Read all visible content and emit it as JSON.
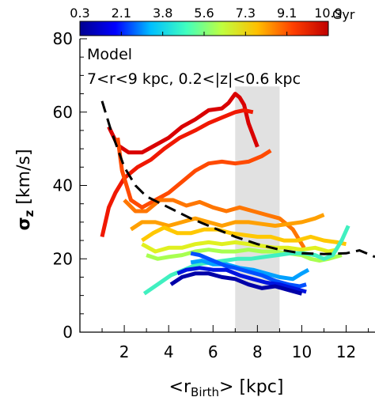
{
  "chart_data": {
    "type": "line",
    "annotations": [
      "Model",
      "7<r<9 kpc, 0.2<|z|<0.6 kpc"
    ],
    "xlabel": {
      "prefix": "<r",
      "sub": "Birth",
      "suffix": "> [kpc]"
    },
    "ylabel": {
      "main": "σ",
      "sub": "z",
      "suffix": " [km/s]"
    },
    "xlim": [
      0,
      13.3
    ],
    "ylim": [
      0,
      80
    ],
    "xticks": [
      2,
      4,
      6,
      8,
      10,
      12
    ],
    "yticks": [
      0,
      20,
      40,
      60,
      80
    ],
    "colorbar": {
      "ticks": [
        "0.3",
        "2.1",
        "3.8",
        "5.6",
        "7.3",
        "9.1",
        "10.9"
      ],
      "unit": "Gyr",
      "colors": [
        "#00008f",
        "#0000ff",
        "#00bfff",
        "#40ffbf",
        "#bfff40",
        "#ffbf00",
        "#ff4000",
        "#bf0000"
      ]
    },
    "shaded_region": {
      "x": [
        7,
        9
      ],
      "color": "#e1e1e1"
    },
    "reference_line": {
      "style": "dashed",
      "color": "#000000",
      "points": [
        [
          1.0,
          63
        ],
        [
          1.4,
          55
        ],
        [
          2.0,
          45
        ],
        [
          2.5,
          40
        ],
        [
          3.0,
          37
        ],
        [
          4.0,
          34
        ],
        [
          5.0,
          31
        ],
        [
          6.0,
          28.5
        ],
        [
          7.0,
          26
        ],
        [
          8.0,
          24
        ],
        [
          9.0,
          22.5
        ],
        [
          10.0,
          21.5
        ],
        [
          11.0,
          21.3
        ],
        [
          12.0,
          21.5
        ],
        [
          12.6,
          22.3
        ],
        [
          13.3,
          20.5
        ]
      ]
    },
    "series": [
      {
        "color": "#d90000",
        "points": [
          [
            1.3,
            56
          ],
          [
            1.7,
            51
          ],
          [
            2.2,
            49
          ],
          [
            2.8,
            49
          ],
          [
            3.4,
            51
          ],
          [
            4.0,
            53
          ],
          [
            4.6,
            56
          ],
          [
            5.2,
            58
          ],
          [
            5.8,
            60.5
          ],
          [
            6.4,
            61
          ],
          [
            6.7,
            62.5
          ],
          [
            7.0,
            65
          ],
          [
            7.2,
            64
          ],
          [
            7.4,
            62
          ],
          [
            7.6,
            57
          ],
          [
            8.0,
            50.5
          ]
        ]
      },
      {
        "color": "#f01800",
        "points": [
          [
            1.0,
            26
          ],
          [
            1.3,
            34
          ],
          [
            1.6,
            38
          ],
          [
            2.0,
            42
          ],
          [
            2.6,
            45
          ],
          [
            3.2,
            47
          ],
          [
            3.8,
            50
          ],
          [
            4.5,
            53
          ],
          [
            5.2,
            55
          ],
          [
            5.8,
            57
          ],
          [
            6.4,
            58.5
          ],
          [
            7.0,
            60
          ],
          [
            7.4,
            60.5
          ],
          [
            7.8,
            60
          ]
        ]
      },
      {
        "color": "#ff4a00",
        "points": [
          [
            1.7,
            53
          ],
          [
            1.9,
            44
          ],
          [
            2.3,
            36
          ],
          [
            2.8,
            34
          ],
          [
            3.4,
            36
          ],
          [
            4.0,
            38
          ],
          [
            4.6,
            41
          ],
          [
            5.2,
            44
          ],
          [
            5.8,
            46
          ],
          [
            6.4,
            46.5
          ],
          [
            7.0,
            46
          ],
          [
            7.6,
            46.5
          ],
          [
            8.2,
            48
          ],
          [
            8.6,
            49.5
          ]
        ]
      },
      {
        "color": "#ff7600",
        "points": [
          [
            2.0,
            36
          ],
          [
            2.5,
            33
          ],
          [
            3.0,
            33
          ],
          [
            3.6,
            36
          ],
          [
            4.2,
            36
          ],
          [
            4.8,
            34.5
          ],
          [
            5.4,
            35.5
          ],
          [
            6.0,
            34
          ],
          [
            6.6,
            33
          ],
          [
            7.2,
            34
          ],
          [
            7.8,
            33
          ],
          [
            8.4,
            32
          ],
          [
            9.0,
            31
          ],
          [
            9.6,
            28
          ],
          [
            10.1,
            23
          ]
        ]
      },
      {
        "color": "#ffa000",
        "points": [
          [
            2.3,
            28
          ],
          [
            2.8,
            30
          ],
          [
            3.4,
            30
          ],
          [
            4.0,
            29
          ],
          [
            4.6,
            30
          ],
          [
            5.2,
            31
          ],
          [
            5.8,
            30
          ],
          [
            6.4,
            29
          ],
          [
            7.0,
            30
          ],
          [
            7.6,
            30
          ],
          [
            8.2,
            29.5
          ],
          [
            8.8,
            29
          ],
          [
            9.4,
            29.5
          ],
          [
            10.0,
            30
          ],
          [
            10.6,
            31
          ],
          [
            11.0,
            32
          ]
        ]
      },
      {
        "color": "#ffc800",
        "points": [
          [
            2.8,
            25
          ],
          [
            3.3,
            27
          ],
          [
            3.8,
            28.5
          ],
          [
            4.4,
            27
          ],
          [
            5.0,
            27
          ],
          [
            5.6,
            28
          ],
          [
            6.2,
            28
          ],
          [
            6.8,
            27
          ],
          [
            7.4,
            26.5
          ],
          [
            8.0,
            26
          ],
          [
            8.6,
            26
          ],
          [
            9.2,
            25
          ],
          [
            9.8,
            25
          ],
          [
            10.4,
            26
          ],
          [
            11.0,
            25
          ],
          [
            11.6,
            24.5
          ],
          [
            12.0,
            24
          ]
        ]
      },
      {
        "color": "#e0f020",
        "points": [
          [
            2.8,
            24
          ],
          [
            3.4,
            22
          ],
          [
            4.0,
            23
          ],
          [
            4.6,
            23
          ],
          [
            5.2,
            24
          ],
          [
            5.8,
            24.5
          ],
          [
            6.4,
            24
          ],
          [
            7.0,
            24.5
          ],
          [
            7.6,
            24
          ],
          [
            8.2,
            23.5
          ],
          [
            8.8,
            23
          ],
          [
            9.4,
            23
          ],
          [
            10.0,
            22.5
          ],
          [
            10.6,
            23
          ],
          [
            11.2,
            22
          ],
          [
            11.6,
            22.5
          ]
        ]
      },
      {
        "color": "#a8ff50",
        "points": [
          [
            3.0,
            21
          ],
          [
            3.5,
            20
          ],
          [
            4.0,
            20.5
          ],
          [
            4.6,
            21
          ],
          [
            5.2,
            22
          ],
          [
            5.8,
            22.5
          ],
          [
            6.4,
            22
          ],
          [
            7.0,
            22
          ],
          [
            7.6,
            22.5
          ],
          [
            8.2,
            22
          ],
          [
            8.8,
            22
          ],
          [
            9.4,
            21.5
          ],
          [
            10.0,
            21
          ],
          [
            10.4,
            20
          ],
          [
            10.8,
            19.5
          ],
          [
            11.2,
            20
          ],
          [
            11.8,
            21
          ]
        ]
      },
      {
        "color": "#40f0c0",
        "points": [
          [
            2.9,
            10.5
          ],
          [
            3.5,
            13
          ],
          [
            4.1,
            15.5
          ],
          [
            4.7,
            17
          ],
          [
            5.3,
            18.5
          ],
          [
            5.9,
            19
          ],
          [
            6.5,
            19.5
          ],
          [
            7.1,
            20
          ],
          [
            7.7,
            20
          ],
          [
            8.3,
            20.5
          ],
          [
            8.9,
            21
          ],
          [
            9.5,
            21.5
          ],
          [
            10.1,
            21.5
          ],
          [
            10.6,
            21
          ],
          [
            11.0,
            20
          ],
          [
            11.4,
            21
          ],
          [
            11.8,
            25
          ],
          [
            12.1,
            29
          ]
        ]
      },
      {
        "color": "#00a0ff",
        "points": [
          [
            5.0,
            19
          ],
          [
            5.5,
            19.5
          ],
          [
            6.0,
            18.5
          ],
          [
            6.6,
            18.5
          ],
          [
            7.2,
            17.5
          ],
          [
            7.8,
            17
          ],
          [
            8.4,
            16
          ],
          [
            9.0,
            15
          ],
          [
            9.6,
            14.5
          ],
          [
            10.0,
            16
          ],
          [
            10.3,
            17
          ]
        ]
      },
      {
        "color": "#0050ff",
        "points": [
          [
            5.0,
            21.5
          ],
          [
            5.4,
            21
          ],
          [
            5.8,
            20
          ],
          [
            6.2,
            19
          ],
          [
            6.6,
            18
          ],
          [
            7.0,
            17.5
          ],
          [
            7.6,
            16.5
          ],
          [
            8.2,
            15.5
          ],
          [
            8.8,
            14
          ],
          [
            9.4,
            13
          ],
          [
            9.9,
            12.5
          ],
          [
            10.2,
            13
          ]
        ]
      },
      {
        "color": "#0014e0",
        "points": [
          [
            4.4,
            16
          ],
          [
            4.8,
            17
          ],
          [
            5.4,
            17.5
          ],
          [
            6.0,
            17
          ],
          [
            6.6,
            17
          ],
          [
            7.2,
            15.5
          ],
          [
            7.8,
            14.5
          ],
          [
            8.4,
            13.5
          ],
          [
            9.0,
            13
          ],
          [
            9.6,
            12
          ],
          [
            10.2,
            11
          ]
        ]
      },
      {
        "color": "#0000a8",
        "points": [
          [
            4.1,
            13
          ],
          [
            4.6,
            15
          ],
          [
            5.2,
            16
          ],
          [
            5.8,
            16
          ],
          [
            6.4,
            15
          ],
          [
            7.0,
            14.5
          ],
          [
            7.6,
            13
          ],
          [
            8.2,
            12
          ],
          [
            8.8,
            12.5
          ],
          [
            9.4,
            11.5
          ],
          [
            10.0,
            10.5
          ]
        ]
      }
    ]
  }
}
